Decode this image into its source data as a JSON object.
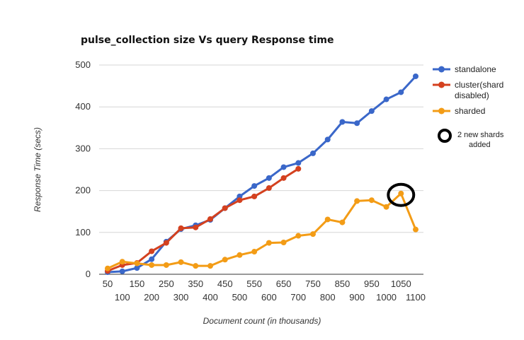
{
  "chart_data": {
    "type": "line",
    "title": "pulse_collection size Vs query Response time",
    "xlabel": "Document count (in thousands)",
    "ylabel": "Response Time (secs)",
    "ylim": [
      0,
      500
    ],
    "yticks": [
      0,
      100,
      200,
      300,
      400,
      500
    ],
    "categories": [
      "50",
      "100",
      "150",
      "200",
      "250",
      "300",
      "350",
      "400",
      "450",
      "500",
      "550",
      "600",
      "650",
      "700",
      "750",
      "800",
      "850",
      "900",
      "950",
      "1000",
      "1050",
      "1100"
    ],
    "grid": true,
    "legend_position": "right",
    "series": [
      {
        "name": "standalone",
        "color": "#3a67c9",
        "values": [
          5,
          7,
          15,
          36,
          78,
          108,
          117,
          130,
          158,
          186,
          211,
          230,
          256,
          266,
          289,
          322,
          364,
          361,
          390,
          418,
          435,
          473
        ]
      },
      {
        "name": "cluster(shard disabled)",
        "color": "#d4411f",
        "values": [
          8,
          22,
          27,
          55,
          75,
          110,
          112,
          132,
          158,
          177,
          186,
          206,
          230,
          252,
          null,
          null,
          null,
          null,
          null,
          null,
          null,
          null
        ]
      },
      {
        "name": "sharded",
        "color": "#f39c16",
        "values": [
          14,
          30,
          26,
          22,
          22,
          29,
          20,
          20,
          35,
          46,
          54,
          75,
          76,
          92,
          96,
          131,
          124,
          175,
          177,
          161,
          193,
          107
        ]
      }
    ],
    "annotation": {
      "text_line1": "2 new shards",
      "text_line2": "added",
      "x_category": "1050",
      "y_value": 193
    }
  }
}
